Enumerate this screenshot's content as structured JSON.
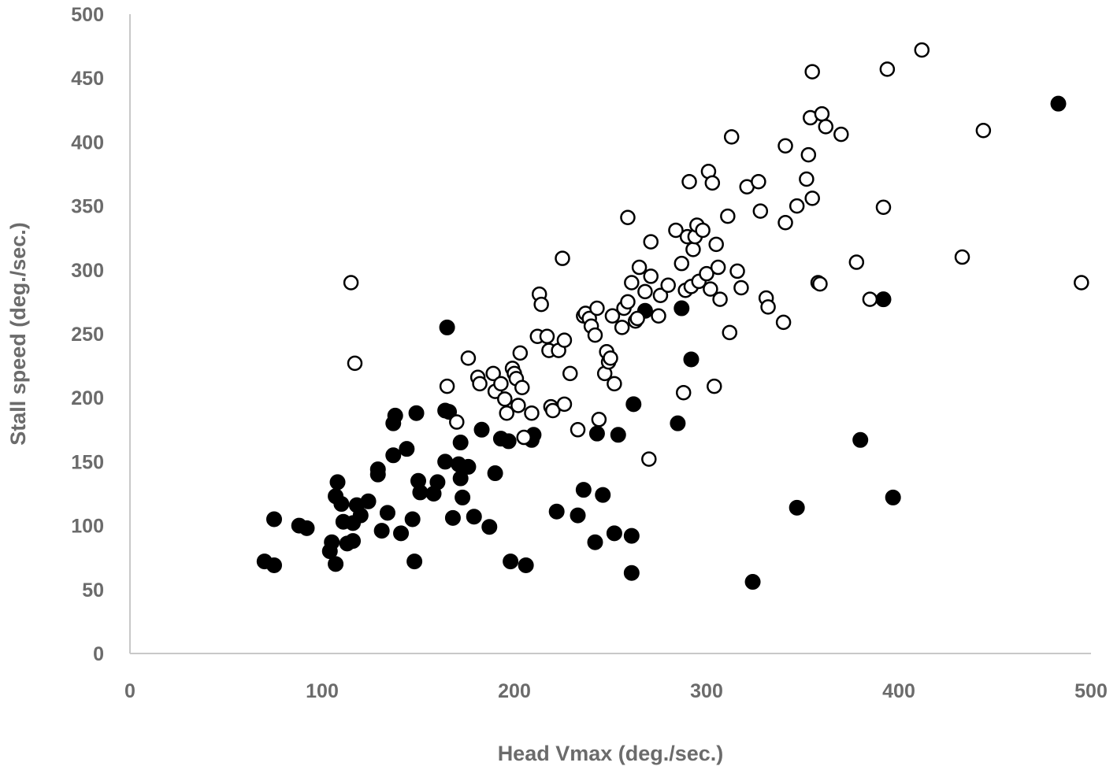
{
  "chart_data": {
    "type": "scatter",
    "title": "",
    "xlabel": "Head Vmax  (deg./sec.)",
    "ylabel": "Stall speed (deg./sec.)",
    "xlim": [
      0,
      500
    ],
    "ylim": [
      0,
      500
    ],
    "x_ticks": [
      "0",
      "100",
      "200",
      "300",
      "400",
      "500"
    ],
    "y_ticks": [
      "0",
      "50",
      "100",
      "150",
      "200",
      "250",
      "300",
      "350",
      "400",
      "450",
      "500"
    ],
    "grid": false,
    "legend": "none",
    "series": [
      {
        "marker": "filled-circle",
        "color": "#000000",
        "points": [
          [
            70,
            72
          ],
          [
            75,
            69
          ],
          [
            75,
            105
          ],
          [
            88,
            100
          ],
          [
            92,
            98
          ],
          [
            104,
            80
          ],
          [
            105,
            87
          ],
          [
            107,
            70
          ],
          [
            107,
            123
          ],
          [
            108,
            134
          ],
          [
            110,
            117
          ],
          [
            111,
            103
          ],
          [
            113,
            86
          ],
          [
            116,
            88
          ],
          [
            116,
            102
          ],
          [
            118,
            116
          ],
          [
            120,
            108
          ],
          [
            124,
            119
          ],
          [
            129,
            144
          ],
          [
            129,
            140
          ],
          [
            131,
            96
          ],
          [
            134,
            110
          ],
          [
            137,
            155
          ],
          [
            137,
            180
          ],
          [
            138,
            186
          ],
          [
            141,
            94
          ],
          [
            144,
            160
          ],
          [
            147,
            105
          ],
          [
            148,
            72
          ],
          [
            149,
            188
          ],
          [
            150,
            135
          ],
          [
            151,
            126
          ],
          [
            158,
            125
          ],
          [
            160,
            134
          ],
          [
            164,
            150
          ],
          [
            164,
            190
          ],
          [
            165,
            255
          ],
          [
            166,
            189
          ],
          [
            168,
            106
          ],
          [
            171,
            148
          ],
          [
            172,
            137
          ],
          [
            172,
            165
          ],
          [
            173,
            122
          ],
          [
            176,
            146
          ],
          [
            179,
            107
          ],
          [
            183,
            175
          ],
          [
            187,
            99
          ],
          [
            190,
            141
          ],
          [
            193,
            168
          ],
          [
            197,
            166
          ],
          [
            198,
            72
          ],
          [
            206,
            69
          ],
          [
            209,
            167
          ],
          [
            210,
            171
          ],
          [
            222,
            111
          ],
          [
            233,
            108
          ],
          [
            236,
            128
          ],
          [
            242,
            87
          ],
          [
            243,
            172
          ],
          [
            246,
            124
          ],
          [
            252,
            94
          ],
          [
            254,
            171
          ],
          [
            261,
            63
          ],
          [
            261,
            92
          ],
          [
            262,
            195
          ],
          [
            268,
            268
          ],
          [
            285,
            180
          ],
          [
            287,
            270
          ],
          [
            292,
            230
          ],
          [
            324,
            56
          ],
          [
            347,
            114
          ],
          [
            380,
            167
          ],
          [
            392,
            277
          ],
          [
            397,
            122
          ],
          [
            483,
            430
          ]
        ]
      },
      {
        "marker": "open-circle",
        "color": "#000000",
        "points": [
          [
            115,
            290
          ],
          [
            117,
            227
          ],
          [
            165,
            209
          ],
          [
            170,
            181
          ],
          [
            176,
            231
          ],
          [
            181,
            216
          ],
          [
            182,
            211
          ],
          [
            189,
            219
          ],
          [
            190,
            205
          ],
          [
            193,
            211
          ],
          [
            195,
            199
          ],
          [
            196,
            188
          ],
          [
            199,
            223
          ],
          [
            200,
            219
          ],
          [
            201,
            215
          ],
          [
            202,
            194
          ],
          [
            203,
            235
          ],
          [
            204,
            208
          ],
          [
            205,
            169
          ],
          [
            209,
            188
          ],
          [
            212,
            248
          ],
          [
            213,
            281
          ],
          [
            214,
            273
          ],
          [
            217,
            248
          ],
          [
            218,
            237
          ],
          [
            219,
            193
          ],
          [
            220,
            190
          ],
          [
            223,
            237
          ],
          [
            225,
            309
          ],
          [
            226,
            245
          ],
          [
            226,
            195
          ],
          [
            229,
            219
          ],
          [
            233,
            175
          ],
          [
            236,
            264
          ],
          [
            237,
            266
          ],
          [
            239,
            262
          ],
          [
            240,
            256
          ],
          [
            242,
            249
          ],
          [
            243,
            270
          ],
          [
            244,
            183
          ],
          [
            247,
            219
          ],
          [
            248,
            236
          ],
          [
            249,
            228
          ],
          [
            250,
            231
          ],
          [
            251,
            264
          ],
          [
            252,
            211
          ],
          [
            256,
            255
          ],
          [
            257,
            270
          ],
          [
            259,
            275
          ],
          [
            259,
            341
          ],
          [
            261,
            290
          ],
          [
            263,
            260
          ],
          [
            264,
            262
          ],
          [
            265,
            302
          ],
          [
            268,
            283
          ],
          [
            270,
            152
          ],
          [
            271,
            322
          ],
          [
            271,
            295
          ],
          [
            275,
            264
          ],
          [
            276,
            280
          ],
          [
            280,
            288
          ],
          [
            284,
            331
          ],
          [
            287,
            305
          ],
          [
            288,
            204
          ],
          [
            289,
            284
          ],
          [
            290,
            326
          ],
          [
            291,
            369
          ],
          [
            292,
            287
          ],
          [
            293,
            316
          ],
          [
            294,
            326
          ],
          [
            295,
            335
          ],
          [
            296,
            291
          ],
          [
            298,
            331
          ],
          [
            300,
            297
          ],
          [
            301,
            377
          ],
          [
            302,
            285
          ],
          [
            303,
            368
          ],
          [
            304,
            209
          ],
          [
            305,
            320
          ],
          [
            306,
            302
          ],
          [
            307,
            277
          ],
          [
            311,
            342
          ],
          [
            312,
            251
          ],
          [
            313,
            404
          ],
          [
            316,
            299
          ],
          [
            318,
            286
          ],
          [
            321,
            365
          ],
          [
            327,
            369
          ],
          [
            328,
            346
          ],
          [
            331,
            278
          ],
          [
            332,
            271
          ],
          [
            340,
            259
          ],
          [
            341,
            337
          ],
          [
            341,
            397
          ],
          [
            347,
            350
          ],
          [
            352,
            371
          ],
          [
            353,
            390
          ],
          [
            354,
            419
          ],
          [
            355,
            356
          ],
          [
            355,
            455
          ],
          [
            358,
            290
          ],
          [
            359,
            289
          ],
          [
            360,
            422
          ],
          [
            362,
            412
          ],
          [
            370,
            406
          ],
          [
            378,
            306
          ],
          [
            385,
            277
          ],
          [
            392,
            349
          ],
          [
            394,
            457
          ],
          [
            412,
            472
          ],
          [
            433,
            310
          ],
          [
            444,
            409
          ],
          [
            495,
            290
          ]
        ]
      }
    ]
  }
}
